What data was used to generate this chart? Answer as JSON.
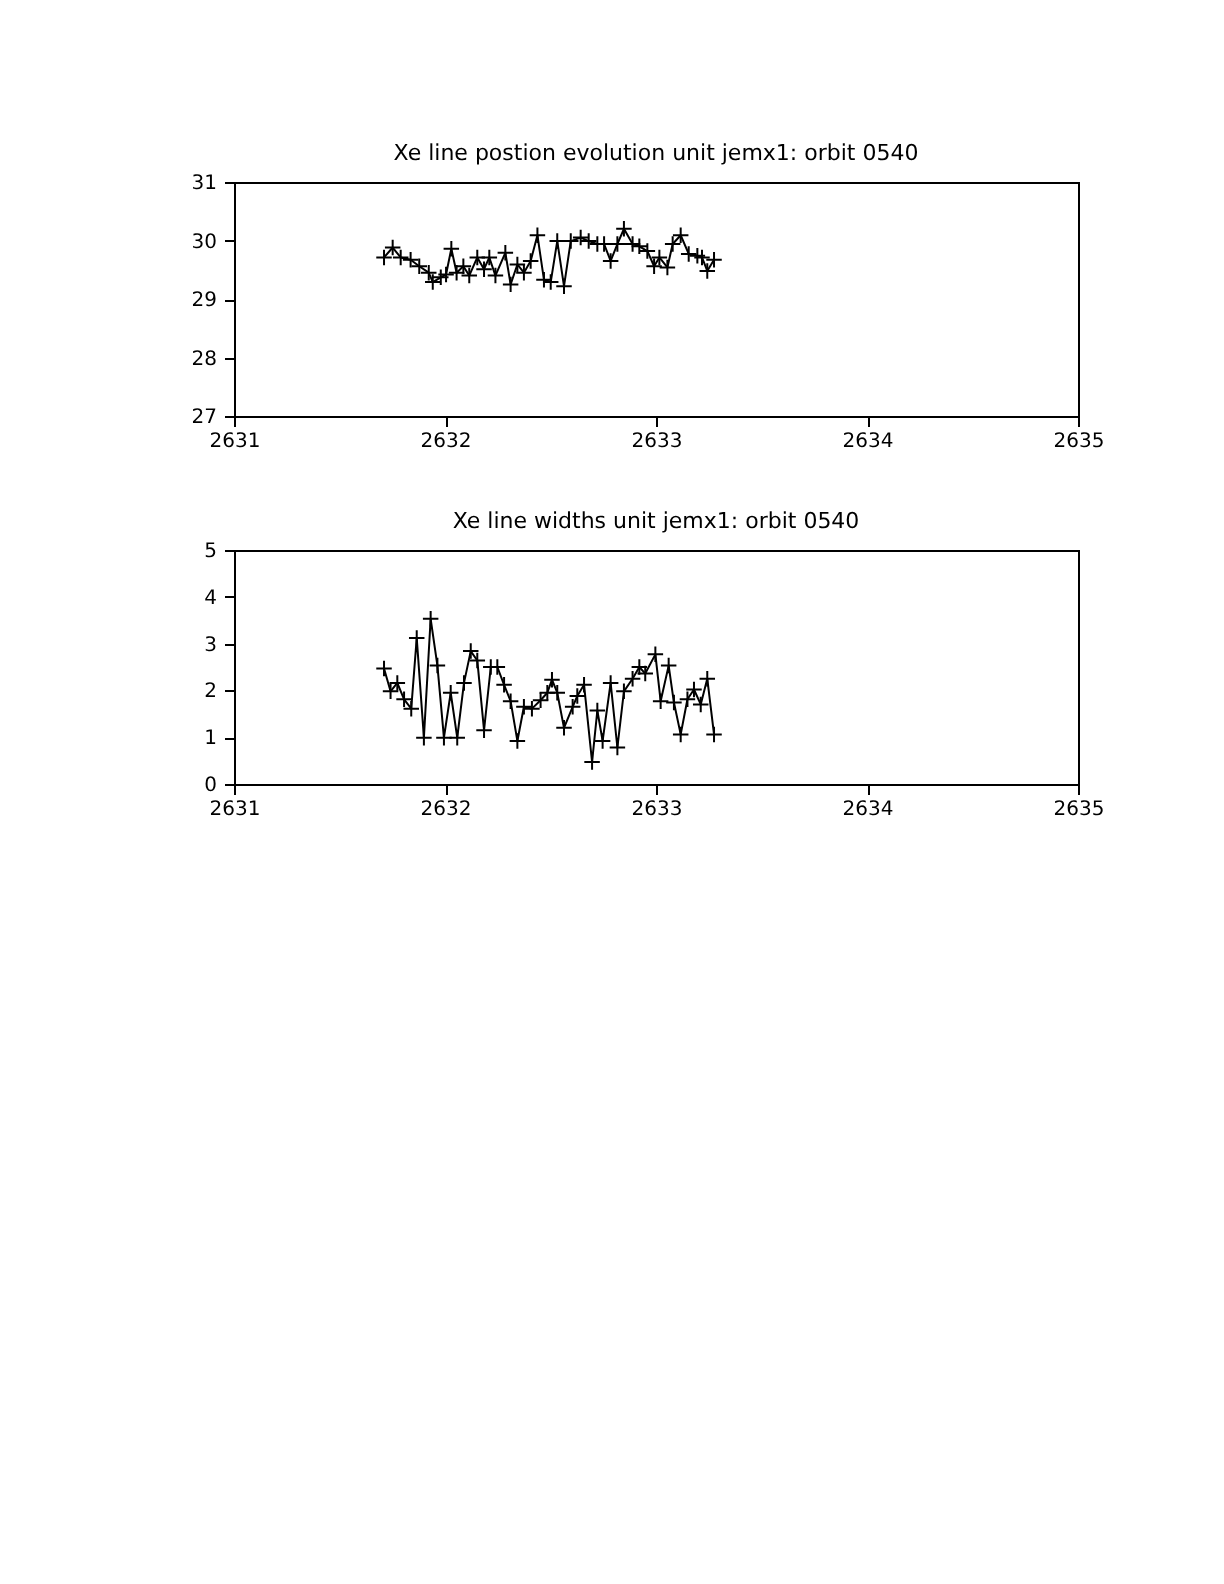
{
  "chart_data": [
    {
      "type": "line",
      "title": "Xe line postion evolution unit jemx1: orbit 0540",
      "marker": "cross",
      "line_style": "solid",
      "grid": false,
      "xlim": [
        2631,
        2635
      ],
      "xticks": [
        2631,
        2632,
        2633,
        2634,
        2635
      ],
      "ylim": [
        27,
        31
      ],
      "yticks": [
        27,
        28,
        29,
        30,
        31
      ],
      "series": [
        {
          "color": "#000000",
          "x": [
            2631.711,
            2631.752,
            2631.79,
            2631.837,
            2631.878,
            2631.923,
            2631.942,
            2631.98,
            2632.005,
            2632.03,
            2632.055,
            2632.087,
            2632.115,
            2632.153,
            2632.185,
            2632.21,
            2632.239,
            2632.286,
            2632.311,
            2632.343,
            2632.374,
            2632.406,
            2632.438,
            2632.469,
            2632.501,
            2632.532,
            2632.564,
            2632.596,
            2632.643,
            2632.681,
            2632.722,
            2632.754,
            2632.785,
            2632.817,
            2632.848,
            2632.889,
            2632.921,
            2632.959,
            2632.991,
            2633.016,
            2633.054,
            2633.079,
            2633.117,
            2633.155,
            2633.196,
            2633.218,
            2633.243,
            2633.275
          ],
          "values": [
            29.71,
            29.88,
            29.71,
            29.67,
            29.56,
            29.45,
            29.29,
            29.37,
            29.42,
            29.86,
            29.45,
            29.56,
            29.4,
            29.71,
            29.51,
            29.71,
            29.4,
            29.79,
            29.25,
            29.59,
            29.45,
            29.65,
            30.09,
            29.33,
            29.29,
            29.99,
            29.22,
            29.99,
            30.05,
            29.99,
            29.94,
            29.94,
            29.65,
            29.94,
            30.2,
            29.94,
            29.9,
            29.82,
            29.56,
            29.71,
            29.54,
            29.94,
            30.09,
            29.77,
            29.74,
            29.71,
            29.48,
            29.67
          ]
        }
      ]
    },
    {
      "type": "line",
      "title": "Xe line widths unit jemx1: orbit 0540",
      "marker": "cross",
      "line_style": "solid",
      "grid": false,
      "xlim": [
        2631,
        2635
      ],
      "xticks": [
        2631,
        2632,
        2633,
        2634,
        2635
      ],
      "ylim": [
        0,
        5
      ],
      "yticks": [
        0,
        1,
        2,
        3,
        4,
        5
      ],
      "series": [
        {
          "color": "#000000",
          "x": [
            2631.711,
            2631.742,
            2631.774,
            2631.806,
            2631.84,
            2631.866,
            2631.9,
            2631.932,
            2631.964,
            2631.995,
            2632.027,
            2632.058,
            2632.09,
            2632.122,
            2632.153,
            2632.185,
            2632.217,
            2632.248,
            2632.28,
            2632.311,
            2632.343,
            2632.374,
            2632.412,
            2632.453,
            2632.485,
            2632.507,
            2632.532,
            2632.564,
            2632.605,
            2632.627,
            2632.659,
            2632.697,
            2632.722,
            2632.747,
            2632.785,
            2632.817,
            2632.848,
            2632.889,
            2632.921,
            2632.949,
            2632.997,
            2633.022,
            2633.06,
            2633.085,
            2633.117,
            2633.149,
            2633.18,
            2633.212,
            2633.243,
            2633.275
          ],
          "values": [
            2.47,
            1.98,
            2.16,
            1.81,
            1.61,
            3.12,
            0.99,
            3.53,
            2.53,
            0.99,
            1.95,
            0.99,
            2.16,
            2.84,
            2.64,
            1.15,
            2.5,
            2.5,
            2.12,
            1.77,
            0.92,
            1.65,
            1.61,
            1.79,
            1.95,
            2.23,
            1.95,
            1.2,
            1.65,
            1.88,
            2.12,
            0.47,
            1.57,
            0.92,
            2.16,
            0.78,
            1.98,
            2.25,
            2.5,
            2.36,
            2.77,
            1.77,
            2.53,
            1.74,
            1.06,
            1.81,
            2.02,
            1.7,
            2.25,
            1.06
          ]
        }
      ]
    }
  ]
}
